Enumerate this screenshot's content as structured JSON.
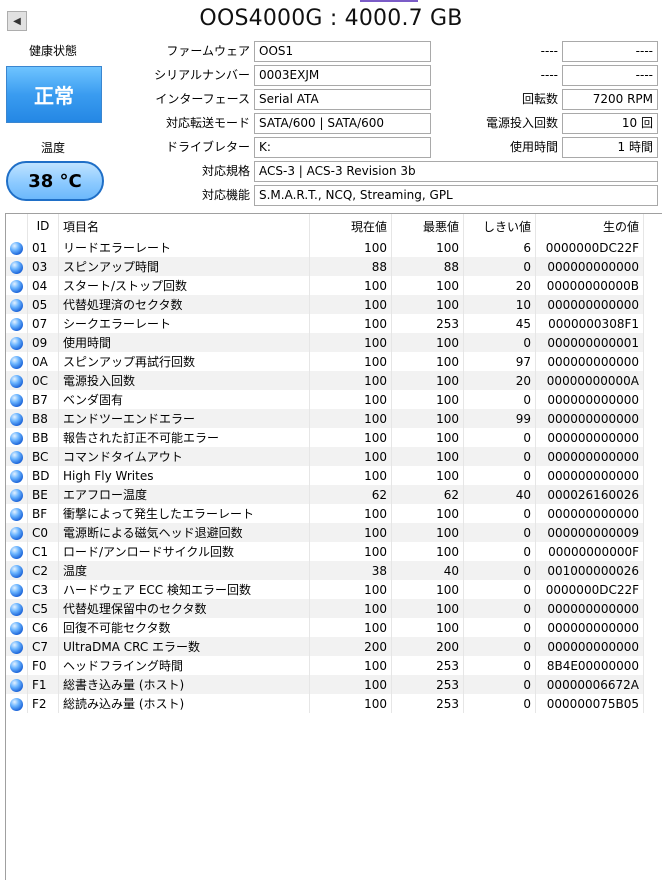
{
  "title": "OOS4000G : 4000.7 GB",
  "nav": {
    "icon": "back-arrow-icon",
    "glyph": "◀"
  },
  "health": {
    "label": "健康状態",
    "value": "正常"
  },
  "temperature": {
    "label": "温度",
    "value": "38 °C"
  },
  "info": {
    "firmware": {
      "label": "ファームウェア",
      "value": "OOS1"
    },
    "serial": {
      "label": "シリアルナンバー",
      "value": "0003EXJM"
    },
    "interface": {
      "label": "インターフェース",
      "value": "Serial ATA"
    },
    "transfer": {
      "label": "対応転送モード",
      "value": "SATA/600 | SATA/600"
    },
    "drive_letter": {
      "label": "ドライブレター",
      "value": "K:"
    },
    "standard": {
      "label": "対応規格",
      "value": "ACS-3 | ACS-3 Revision 3b"
    },
    "features": {
      "label": "対応機能",
      "value": "S.M.A.R.T., NCQ, Streaming, GPL"
    },
    "r1": {
      "label": "----",
      "value": "----"
    },
    "r2": {
      "label": "----",
      "value": "----"
    },
    "rotation": {
      "label": "回転数",
      "value": "7200 RPM"
    },
    "power_count": {
      "label": "電源投入回数",
      "value": "10 回"
    },
    "power_hours": {
      "label": "使用時間",
      "value": "1 時間"
    }
  },
  "table": {
    "headers": {
      "id": "ID",
      "name": "項目名",
      "current": "現在値",
      "worst": "最悪値",
      "threshold": "しきい値",
      "raw": "生の値"
    },
    "rows": [
      {
        "id": "01",
        "name": "リードエラーレート",
        "current": "100",
        "worst": "100",
        "threshold": "6",
        "raw": "0000000DC22F"
      },
      {
        "id": "03",
        "name": "スピンアップ時間",
        "current": "88",
        "worst": "88",
        "threshold": "0",
        "raw": "000000000000"
      },
      {
        "id": "04",
        "name": "スタート/ストップ回数",
        "current": "100",
        "worst": "100",
        "threshold": "20",
        "raw": "00000000000B"
      },
      {
        "id": "05",
        "name": "代替処理済のセクタ数",
        "current": "100",
        "worst": "100",
        "threshold": "10",
        "raw": "000000000000"
      },
      {
        "id": "07",
        "name": "シークエラーレート",
        "current": "100",
        "worst": "253",
        "threshold": "45",
        "raw": "0000000308F1"
      },
      {
        "id": "09",
        "name": "使用時間",
        "current": "100",
        "worst": "100",
        "threshold": "0",
        "raw": "000000000001"
      },
      {
        "id": "0A",
        "name": "スピンアップ再試行回数",
        "current": "100",
        "worst": "100",
        "threshold": "97",
        "raw": "000000000000"
      },
      {
        "id": "0C",
        "name": "電源投入回数",
        "current": "100",
        "worst": "100",
        "threshold": "20",
        "raw": "00000000000A"
      },
      {
        "id": "B7",
        "name": "ベンダ固有",
        "current": "100",
        "worst": "100",
        "threshold": "0",
        "raw": "000000000000"
      },
      {
        "id": "B8",
        "name": "エンドツーエンドエラー",
        "current": "100",
        "worst": "100",
        "threshold": "99",
        "raw": "000000000000"
      },
      {
        "id": "BB",
        "name": "報告された訂正不可能エラー",
        "current": "100",
        "worst": "100",
        "threshold": "0",
        "raw": "000000000000"
      },
      {
        "id": "BC",
        "name": "コマンドタイムアウト",
        "current": "100",
        "worst": "100",
        "threshold": "0",
        "raw": "000000000000"
      },
      {
        "id": "BD",
        "name": "High Fly Writes",
        "current": "100",
        "worst": "100",
        "threshold": "0",
        "raw": "000000000000"
      },
      {
        "id": "BE",
        "name": "エアフロー温度",
        "current": "62",
        "worst": "62",
        "threshold": "40",
        "raw": "000026160026"
      },
      {
        "id": "BF",
        "name": "衝撃によって発生したエラーレート",
        "current": "100",
        "worst": "100",
        "threshold": "0",
        "raw": "000000000000"
      },
      {
        "id": "C0",
        "name": "電源断による磁気ヘッド退避回数",
        "current": "100",
        "worst": "100",
        "threshold": "0",
        "raw": "000000000009"
      },
      {
        "id": "C1",
        "name": "ロード/アンロードサイクル回数",
        "current": "100",
        "worst": "100",
        "threshold": "0",
        "raw": "00000000000F"
      },
      {
        "id": "C2",
        "name": "温度",
        "current": "38",
        "worst": "40",
        "threshold": "0",
        "raw": "001000000026"
      },
      {
        "id": "C3",
        "name": "ハードウェア ECC 検知エラー回数",
        "current": "100",
        "worst": "100",
        "threshold": "0",
        "raw": "0000000DC22F"
      },
      {
        "id": "C5",
        "name": "代替処理保留中のセクタ数",
        "current": "100",
        "worst": "100",
        "threshold": "0",
        "raw": "000000000000"
      },
      {
        "id": "C6",
        "name": "回復不可能セクタ数",
        "current": "100",
        "worst": "100",
        "threshold": "0",
        "raw": "000000000000"
      },
      {
        "id": "C7",
        "name": "UltraDMA CRC エラー数",
        "current": "200",
        "worst": "200",
        "threshold": "0",
        "raw": "000000000000"
      },
      {
        "id": "F0",
        "name": "ヘッドフライング時間",
        "current": "100",
        "worst": "253",
        "threshold": "0",
        "raw": "8B4E00000000"
      },
      {
        "id": "F1",
        "name": "総書き込み量 (ホスト)",
        "current": "100",
        "worst": "253",
        "threshold": "0",
        "raw": "00000006672A"
      },
      {
        "id": "F2",
        "name": "総読み込み量 (ホスト)",
        "current": "100",
        "worst": "253",
        "threshold": "0",
        "raw": "000000075B05"
      }
    ]
  },
  "colors": {
    "status_good": "#2f8fe8",
    "temp_border": "#1f6fc7",
    "row_alt": "#f2f2f2"
  }
}
